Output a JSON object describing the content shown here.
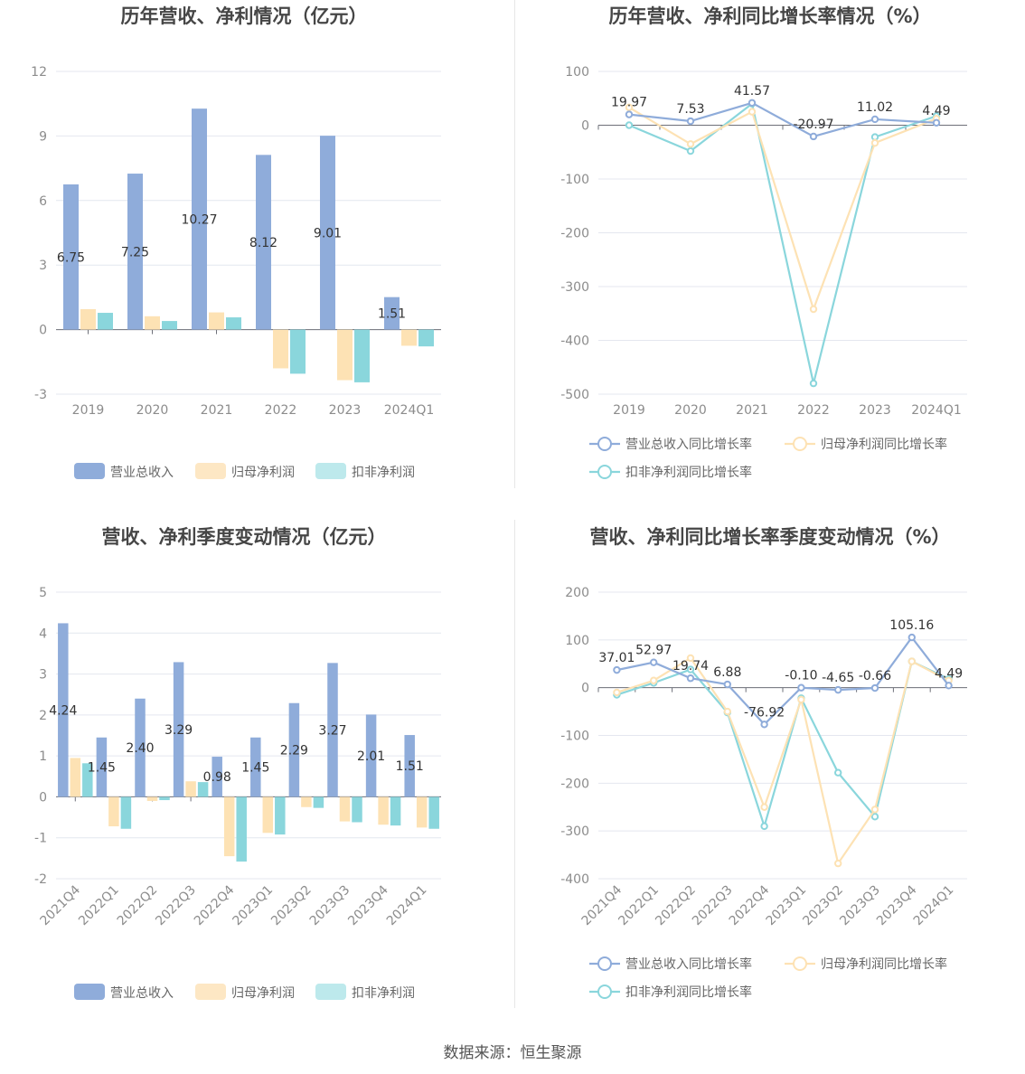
{
  "colors": {
    "revenue": "#8facda",
    "netprofit": "#fde2b4",
    "deducted": "#8ad6dc",
    "grid": "#e4e7ef",
    "axis": "#6e7079",
    "text": "#464646"
  },
  "source": "数据来源：恒生聚源",
  "chart_data": [
    {
      "type": "bar",
      "title": "历年营收、净利情况（亿元）",
      "categories": [
        "2019",
        "2020",
        "2021",
        "2022",
        "2023",
        "2024Q1"
      ],
      "ylim": [
        -3,
        12
      ],
      "yticks": [
        12,
        9,
        6,
        3,
        0,
        -3
      ],
      "series": [
        {
          "name": "营业总收入",
          "values": [
            6.75,
            7.25,
            10.27,
            8.12,
            9.01,
            1.51
          ],
          "labels": [
            "6.75",
            "7.25",
            "10.27",
            "8.12",
            "9.01",
            "1.51"
          ]
        },
        {
          "name": "归母净利润",
          "values": [
            0.95,
            0.62,
            0.8,
            -1.8,
            -2.35,
            -0.75
          ]
        },
        {
          "name": "扣非净利润",
          "values": [
            0.78,
            0.4,
            0.57,
            -2.05,
            -2.45,
            -0.78
          ]
        }
      ],
      "legend": "bottom",
      "grid": true
    },
    {
      "type": "line",
      "title": "历年营收、净利同比增长率情况（%）",
      "categories": [
        "2019",
        "2020",
        "2021",
        "2022",
        "2023",
        "2024Q1"
      ],
      "ylim": [
        -500,
        100
      ],
      "yticks": [
        100,
        0,
        -100,
        -200,
        -300,
        -400,
        -500
      ],
      "series": [
        {
          "name": "营业总收入同比增长率",
          "values": [
            19.97,
            7.53,
            41.57,
            -20.97,
            11.02,
            4.49
          ],
          "labels": [
            "19.97",
            "7.53",
            "41.57",
            "-20.97",
            "11.02",
            "4.49"
          ]
        },
        {
          "name": "归母净利润同比增长率",
          "values": [
            33,
            -35,
            25,
            -342,
            -33,
            12
          ]
        },
        {
          "name": "扣非净利润同比增长率",
          "values": [
            0,
            -48,
            40,
            -480,
            -22,
            17
          ]
        }
      ],
      "legend": "bottom",
      "grid": true
    },
    {
      "type": "bar",
      "title": "营收、净利季度变动情况（亿元）",
      "categories": [
        "2021Q4",
        "2022Q1",
        "2022Q2",
        "2022Q3",
        "2022Q4",
        "2023Q1",
        "2023Q2",
        "2023Q3",
        "2023Q4",
        "2024Q1"
      ],
      "ylim": [
        -2,
        5
      ],
      "yticks": [
        5,
        4,
        3,
        2,
        1,
        0,
        -1,
        -2
      ],
      "series": [
        {
          "name": "营业总收入",
          "values": [
            4.24,
            1.45,
            2.4,
            3.29,
            0.98,
            1.45,
            2.29,
            3.27,
            2.01,
            1.51
          ],
          "labels": [
            "4.24",
            "1.45",
            "2.40",
            "3.29",
            "0.98",
            "1.45",
            "2.29",
            "3.27",
            "2.01",
            "1.51"
          ]
        },
        {
          "name": "归母净利润",
          "values": [
            0.95,
            -0.72,
            -0.1,
            0.38,
            -1.45,
            -0.88,
            -0.25,
            -0.6,
            -0.68,
            -0.75
          ]
        },
        {
          "name": "扣非净利润",
          "values": [
            0.82,
            -0.78,
            -0.08,
            0.36,
            -1.58,
            -0.92,
            -0.27,
            -0.62,
            -0.7,
            -0.78
          ]
        }
      ],
      "legend": "bottom",
      "grid": true
    },
    {
      "type": "line",
      "title": "营收、净利同比增长率季度变动情况（%）",
      "categories": [
        "2021Q4",
        "2022Q1",
        "2022Q2",
        "2022Q3",
        "2022Q4",
        "2023Q1",
        "2023Q2",
        "2023Q3",
        "2023Q4",
        "2024Q1"
      ],
      "ylim": [
        -400,
        200
      ],
      "yticks": [
        200,
        100,
        0,
        -100,
        -200,
        -300,
        -400
      ],
      "series": [
        {
          "name": "营业总收入同比增长率",
          "values": [
            37.01,
            52.97,
            19.74,
            6.88,
            -76.92,
            -0.1,
            -4.65,
            -0.66,
            105.16,
            4.49
          ],
          "labels": [
            "37.01",
            "52.97",
            "19.74",
            "6.88",
            "-76.92",
            "-0.10",
            "-4.65",
            "-0.66",
            "105.16",
            "4.49"
          ]
        },
        {
          "name": "归母净利润同比增长率",
          "values": [
            -10,
            15,
            62,
            -50,
            -250,
            -25,
            -368,
            -255,
            55,
            15
          ]
        },
        {
          "name": "扣非净利润同比增长率",
          "values": [
            -15,
            10,
            38,
            -52,
            -290,
            -22,
            -178,
            -270,
            55,
            18
          ]
        }
      ],
      "legend": "bottom",
      "grid": true
    }
  ]
}
